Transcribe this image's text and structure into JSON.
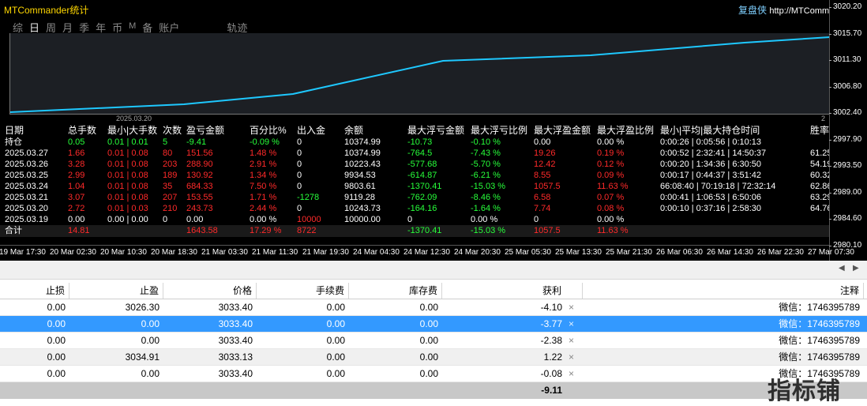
{
  "chart": {
    "title": "MTCommander统计",
    "brand": "复盘侠",
    "brand_url": "http://MTCommander",
    "tabs": [
      "综",
      "日",
      "周",
      "月",
      "季",
      "年",
      "币",
      "M",
      "备",
      "账户",
      "轨迹"
    ],
    "active_tab": "日",
    "equity_date_left": "2025.03.20",
    "equity_date_right": "2",
    "line_color": "#1ec8ff",
    "price_ticks": [
      "3020.20",
      "3015.70",
      "3011.30",
      "3006.80",
      "3002.40",
      "2997.90",
      "2993.50",
      "2989.00",
      "2984.60",
      "2980.10"
    ],
    "time_ticks": [
      "19 Mar 17:30",
      "20 Mar 02:30",
      "20 Mar 10:30",
      "20 Mar 18:30",
      "21 Mar 03:30",
      "21 Mar 11:30",
      "21 Mar 19:30",
      "24 Mar 04:30",
      "24 Mar 12:30",
      "24 Mar 20:30",
      "25 Mar 05:30",
      "25 Mar 13:30",
      "25 Mar 21:30",
      "26 Mar 06:30",
      "26 Mar 14:30",
      "26 Mar 22:30",
      "27 Mar 07:30"
    ]
  },
  "stats": {
    "headers": [
      "日期",
      "总手数",
      "最小|大手数",
      "次数",
      "盈亏金额",
      "百分比%",
      "出入金",
      "余额",
      "最大浮亏金额",
      "最大浮亏比例",
      "最大浮盈金额",
      "最大浮盈比例",
      "最小|平均|最大持仓时间",
      "胜率"
    ],
    "position": {
      "date": "持仓",
      "lots": "0.05",
      "minmax": "0.01 | 0.01",
      "count": "5",
      "pnl": "-9.41",
      "pct": "-0.09 %",
      "flow": "0",
      "balance": "10374.99",
      "maxdd": "-10.73",
      "maxdd_pct": "-0.10 %",
      "maxfp": "0.00",
      "maxfp_pct": "0.00 %",
      "hold": "0:00:26 | 0:05:56 | 0:10:13",
      "win": ""
    },
    "rows": [
      {
        "date": "2025.03.27",
        "lots": "1.66",
        "minmax": "0.01 | 0.08",
        "count": "80",
        "pnl": "151.56",
        "pct": "1.48 %",
        "flow": "0",
        "balance": "10374.99",
        "maxdd": "-764.5",
        "maxdd_pct": "-7.43 %",
        "maxfp": "19.26",
        "maxfp_pct": "0.19 %",
        "hold": "0:00:52 | 2:32:41 | 14:50:37",
        "win": "61.25"
      },
      {
        "date": "2025.03.26",
        "lots": "3.28",
        "minmax": "0.01 | 0.08",
        "count": "203",
        "pnl": "288.90",
        "pct": "2.91 %",
        "flow": "0",
        "balance": "10223.43",
        "maxdd": "-577.68",
        "maxdd_pct": "-5.70 %",
        "maxfp": "12.42",
        "maxfp_pct": "0.12 %",
        "hold": "0:00:20 | 1:34:36 | 6:30:50",
        "win": "54.19"
      },
      {
        "date": "2025.03.25",
        "lots": "2.99",
        "minmax": "0.01 | 0.08",
        "count": "189",
        "pnl": "130.92",
        "pct": "1.34 %",
        "flow": "0",
        "balance": "9934.53",
        "maxdd": "-614.87",
        "maxdd_pct": "-6.21 %",
        "maxfp": "8.55",
        "maxfp_pct": "0.09 %",
        "hold": "0:00:17 | 0:44:37 | 3:51:42",
        "win": "60.32"
      },
      {
        "date": "2025.03.24",
        "lots": "1.04",
        "minmax": "0.01 | 0.08",
        "count": "35",
        "pnl": "684.33",
        "pct": "7.50 %",
        "flow": "0",
        "balance": "9803.61",
        "maxdd": "-1370.41",
        "maxdd_pct": "-15.03 %",
        "maxfp": "1057.5",
        "maxfp_pct": "11.63 %",
        "hold": "66:08:40 | 70:19:18 | 72:32:14",
        "win": "62.86"
      },
      {
        "date": "2025.03.21",
        "lots": "3.07",
        "minmax": "0.01 | 0.08",
        "count": "207",
        "pnl": "153.55",
        "pct": "1.71 %",
        "flow": "-1278",
        "balance": "9119.28",
        "maxdd": "-762.09",
        "maxdd_pct": "-8.46 %",
        "maxfp": "6.58",
        "maxfp_pct": "0.07 %",
        "hold": "0:00:41 | 1:06:53 | 6:50:06",
        "win": "63.29"
      },
      {
        "date": "2025.03.20",
        "lots": "2.72",
        "minmax": "0.01 | 0.03",
        "count": "210",
        "pnl": "243.73",
        "pct": "2.44 %",
        "flow": "0",
        "balance": "10243.73",
        "maxdd": "-164.16",
        "maxdd_pct": "-1.64 %",
        "maxfp": "7.74",
        "maxfp_pct": "0.08 %",
        "hold": "0:00:10 | 0:37:16 | 2:58:30",
        "win": "64.76"
      },
      {
        "date": "2025.03.19",
        "lots": "0.00",
        "minmax": "0.00 | 0.00",
        "count": "0",
        "pnl": "0.00",
        "pct": "0.00 %",
        "flow": "10000",
        "balance": "10000.00",
        "maxdd": "0",
        "maxdd_pct": "0.00 %",
        "maxfp": "0",
        "maxfp_pct": "0.00 %",
        "hold": "",
        "win": ""
      }
    ],
    "total": {
      "date": "合计",
      "lots": "14.81",
      "pnl": "1643.58",
      "pct": "17.29 %",
      "flow": "8722",
      "maxdd": "-1370.41",
      "maxdd_pct": "-15.03 %",
      "maxfp": "1057.5",
      "maxfp_pct": "11.63 %"
    }
  },
  "orders": {
    "headers": [
      "止损",
      "止盈",
      "价格",
      "手续费",
      "库存费",
      "获利",
      "注释"
    ],
    "rows": [
      {
        "sl": "0.00",
        "tp": "3026.30",
        "price": "3033.40",
        "fee": "0.00",
        "swap": "0.00",
        "profit": "-4.10",
        "comment": "微信：1746395789"
      },
      {
        "sl": "0.00",
        "tp": "0.00",
        "price": "3033.40",
        "fee": "0.00",
        "swap": "0.00",
        "profit": "-3.77",
        "comment": "微信：1746395789"
      },
      {
        "sl": "0.00",
        "tp": "0.00",
        "price": "3033.40",
        "fee": "0.00",
        "swap": "0.00",
        "profit": "-2.38",
        "comment": "微信：1746395789"
      },
      {
        "sl": "0.00",
        "tp": "3034.91",
        "price": "3033.13",
        "fee": "0.00",
        "swap": "0.00",
        "profit": "1.22",
        "comment": "微信：1746395789"
      },
      {
        "sl": "0.00",
        "tp": "0.00",
        "price": "3033.40",
        "fee": "0.00",
        "swap": "0.00",
        "profit": "-0.08",
        "comment": "微信：1746395789"
      }
    ],
    "selected_row": 1,
    "total_profit": "-9.11",
    "close_glyph": "×"
  },
  "watermark": "指标铺"
}
